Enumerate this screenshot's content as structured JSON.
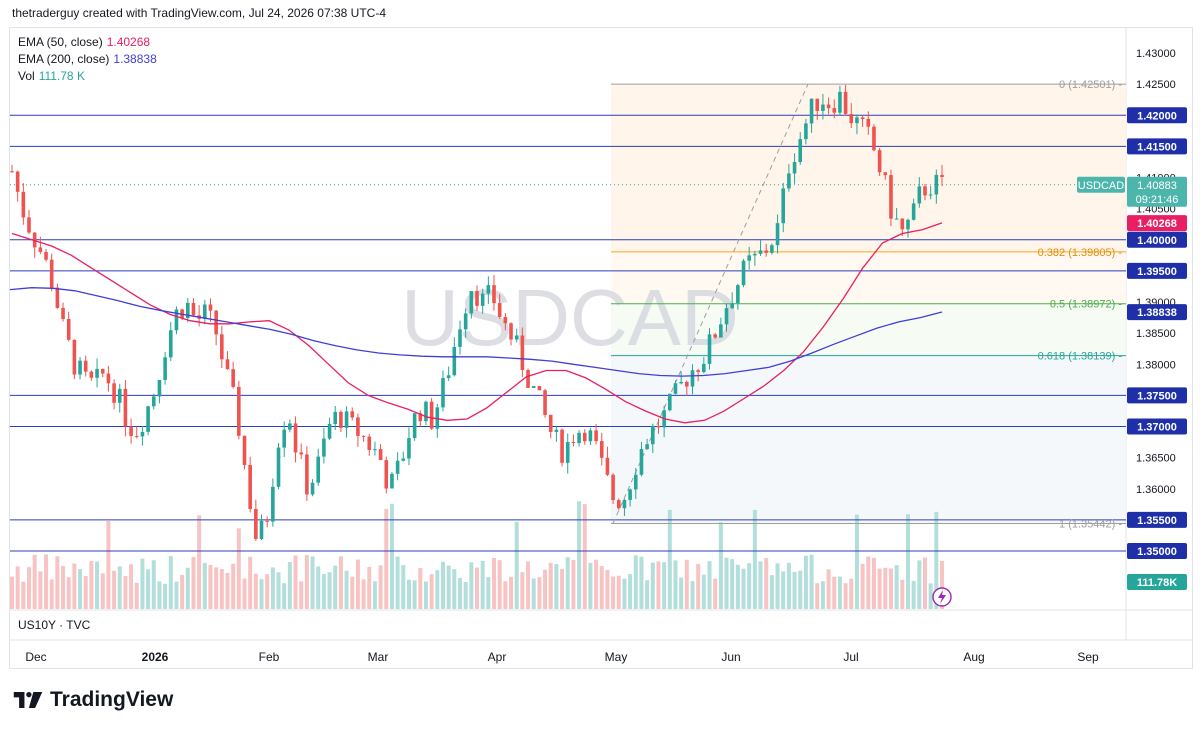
{
  "header": {
    "caption": "thetraderguy created with TradingView.com, Jul 24, 2026 07:38 UTC-4"
  },
  "legend": [
    {
      "label": "EMA (50, close)",
      "value": "1.40268",
      "color": "#e91e63"
    },
    {
      "label": "EMA (200, close)",
      "value": "1.38838",
      "color": "#3f3fd6"
    },
    {
      "label": "Vol",
      "value": "111.78 K",
      "color": "#26a69a"
    }
  ],
  "watermark": "USDCAD",
  "sub_pane_label": "US10Y · TVC",
  "brand": "TradingView",
  "colors": {
    "up": "#26a69a",
    "down": "#ef5350",
    "ema50": "#e91e63",
    "ema200": "#3f3fd6",
    "hline": "#2a3fb8",
    "fib382": "#f5a623",
    "fib50": "#4caf50",
    "fib618": "#26a69a"
  },
  "chart_data": {
    "type": "candlestick",
    "symbol": "USDCAD",
    "x_ticks": [
      "Dec",
      "2026",
      "Feb",
      "Mar",
      "Apr",
      "May",
      "Jun",
      "Jul",
      "Aug",
      "Sep"
    ],
    "y_ticks": [
      "1.43000",
      "1.42500",
      "1.42000",
      "1.41500",
      "1.41000",
      "1.40500",
      "1.40000",
      "1.39500",
      "1.39000",
      "1.38500",
      "1.38000",
      "1.37500",
      "1.37000",
      "1.36500",
      "1.36000",
      "1.35500",
      "1.35000"
    ],
    "ylim": [
      1.3465,
      1.434
    ],
    "horizontal_levels": [
      1.42,
      1.415,
      1.4,
      1.395,
      1.375,
      1.37,
      1.355,
      1.35
    ],
    "level_labels": [
      "1.42000",
      "1.41500",
      "1.40000",
      "1.39500",
      "1.37500",
      "1.37000",
      "1.35500",
      "1.35000"
    ],
    "fibonacci": [
      {
        "label": "0 (1.42501)",
        "value": 1.42501
      },
      {
        "label": "0.382 (1.39805)",
        "value": 1.39805
      },
      {
        "label": "0.5 (1.38972)",
        "value": 1.38972
      },
      {
        "label": "0.618 (1.38139)",
        "value": 1.38139
      },
      {
        "label": "1 (1.35442)",
        "value": 1.35442
      }
    ],
    "last_price": {
      "symbol": "USDCAD",
      "price": "1.40883",
      "countdown": "09:21:46",
      "value": 1.40883
    },
    "ema50_label": {
      "price": "1.40268",
      "value": 1.40268
    },
    "ema200_label": {
      "price": "1.38838",
      "value": 1.38838
    },
    "volume_label": "111.78K",
    "ema50": [
      1.401,
      1.4,
      1.399,
      1.3975,
      1.3955,
      1.3935,
      1.3915,
      1.3895,
      1.388,
      1.387,
      1.3865,
      1.3865,
      1.3868,
      1.387,
      1.3855,
      1.383,
      1.38,
      1.377,
      1.375,
      1.3738,
      1.3728,
      1.3715,
      1.371,
      1.3712,
      1.373,
      1.3755,
      1.378,
      1.379,
      1.379,
      1.3778,
      1.376,
      1.374,
      1.3725,
      1.3712,
      1.3706,
      1.371,
      1.3725,
      1.3745,
      1.3765,
      1.379,
      1.382,
      1.386,
      1.3905,
      1.3955,
      1.3995,
      1.401,
      1.4016,
      1.4027
    ],
    "ema200": [
      1.392,
      1.3923,
      1.3922,
      1.3918,
      1.391,
      1.3902,
      1.3893,
      1.3886,
      1.388,
      1.3874,
      1.3868,
      1.3862,
      1.3856,
      1.3848,
      1.3838,
      1.383,
      1.3823,
      1.3818,
      1.3815,
      1.3813,
      1.3812,
      1.3812,
      1.3812,
      1.381,
      1.3808,
      1.3805,
      1.38,
      1.3795,
      1.379,
      1.3785,
      1.3782,
      1.3781,
      1.3782,
      1.3785,
      1.379,
      1.3795,
      1.3805,
      1.3818,
      1.3832,
      1.3845,
      1.3858,
      1.3868,
      1.3875,
      1.3884
    ],
    "price_path": [
      1.411,
      1.405,
      1.401,
      1.3975,
      1.393,
      1.3855,
      1.3805,
      1.3775,
      1.3765,
      1.3785,
      1.376,
      1.372,
      1.369,
      1.372,
      1.376,
      1.383,
      1.388,
      1.39,
      1.387,
      1.388,
      1.385,
      1.378,
      1.372,
      1.361,
      1.351,
      1.356,
      1.368,
      1.373,
      1.365,
      1.36,
      1.364,
      1.37,
      1.372,
      1.37,
      1.369,
      1.367,
      1.365,
      1.36,
      1.364,
      1.37,
      1.373,
      1.371,
      1.375,
      1.381,
      1.388,
      1.393,
      1.39,
      1.391,
      1.387,
      1.384,
      1.38,
      1.376,
      1.372,
      1.368,
      1.366,
      1.369,
      1.37,
      1.367,
      1.362,
      1.358,
      1.359,
      1.364,
      1.368,
      1.37,
      1.372,
      1.375,
      1.378,
      1.38,
      1.382,
      1.386,
      1.39,
      1.393,
      1.396,
      1.397,
      1.399,
      1.402,
      1.412,
      1.416,
      1.42,
      1.423,
      1.422,
      1.423,
      1.42,
      1.418,
      1.416,
      1.411,
      1.405,
      1.401,
      1.403,
      1.408,
      1.409,
      1.4085
    ]
  }
}
